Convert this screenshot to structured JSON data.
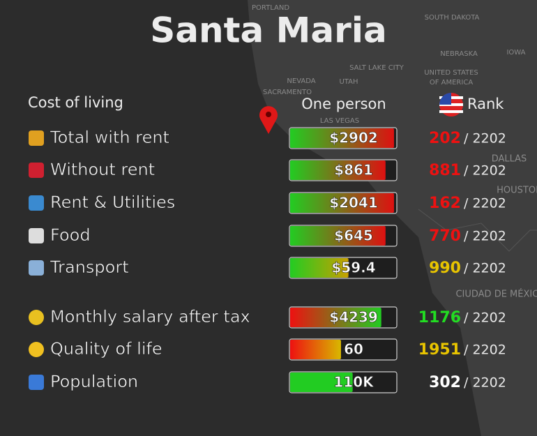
{
  "title": "Santa Maria",
  "header": {
    "section": "Cost of living",
    "column": "One person",
    "rank": "Rank"
  },
  "map_labels": [
    "PORTLAND",
    "SOUTH DAKOTA",
    "NEBRASKA",
    "IOWA",
    "SALT LAKE CITY",
    "NEVADA",
    "UTAH",
    "UNITED STATES",
    "OF AMERICA",
    "SACRAMENTO",
    "LAS VEGAS",
    "DALLAS",
    "HOUSTON",
    "CIUDAD DE MÉXICO"
  ],
  "rows": [
    {
      "label": "Total with rent",
      "value": "$2902",
      "fill": 98,
      "colors": [
        "#22cc22",
        "#dd1111"
      ],
      "rank": "202",
      "rank_color": "#ee1111",
      "total": "/ 2202"
    },
    {
      "label": "Without rent",
      "value": "$861",
      "fill": 90,
      "colors": [
        "#22cc22",
        "#dd1111"
      ],
      "rank": "881",
      "rank_color": "#ee1111",
      "total": "/ 2202"
    },
    {
      "label": "Rent & Utilities",
      "value": "$2041",
      "fill": 98,
      "colors": [
        "#22cc22",
        "#dd1111"
      ],
      "rank": "162",
      "rank_color": "#ee1111",
      "total": "/ 2202"
    },
    {
      "label": "Food",
      "value": "$645",
      "fill": 90,
      "colors": [
        "#22cc22",
        "#dd1111"
      ],
      "rank": "770",
      "rank_color": "#ee1111",
      "total": "/ 2202"
    },
    {
      "label": "Transport",
      "value": "$59.4",
      "fill": 55,
      "colors": [
        "#22cc22",
        "#c8a000"
      ],
      "rank": "990",
      "rank_color": "#e8c400",
      "total": "/ 2202"
    },
    {
      "label": "Monthly salary after tax",
      "value": "$4239",
      "fill": 86,
      "colors": [
        "#ee1111",
        "#22cc22"
      ],
      "rank": "1176",
      "rank_color": "#22dd22",
      "total": "/ 2202"
    },
    {
      "label": "Quality of life",
      "value": "60",
      "fill": 48,
      "colors": [
        "#ee1111",
        "#d8b800"
      ],
      "rank": "1951",
      "rank_color": "#e8c400",
      "total": "/ 2202"
    },
    {
      "label": "Population",
      "value": "110K",
      "fill": 59,
      "colors": [
        "#22cc22",
        "#22cc22"
      ],
      "rank": "302",
      "rank_color": "#ffffff",
      "total": "/ 2202"
    }
  ]
}
